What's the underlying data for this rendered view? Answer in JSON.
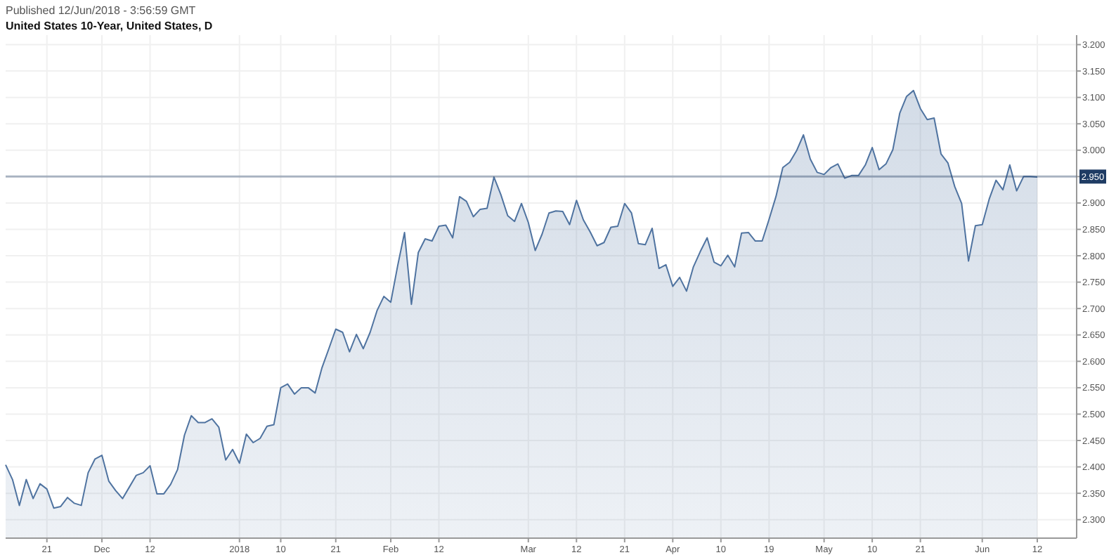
{
  "chart_data": {
    "type": "area",
    "title": "United States 10-Year, United States, D",
    "annotations": [
      "Published 12/Jun/2018 - 3:56:59 GMT"
    ],
    "categories": [
      null,
      null,
      null,
      null,
      null,
      null,
      "21",
      null,
      null,
      null,
      null,
      null,
      null,
      null,
      "Dec",
      null,
      null,
      null,
      null,
      null,
      null,
      "12",
      null,
      null,
      null,
      null,
      null,
      null,
      null,
      null,
      null,
      null,
      null,
      null,
      "2018",
      null,
      null,
      null,
      null,
      null,
      "10",
      null,
      null,
      null,
      null,
      null,
      null,
      null,
      "21",
      null,
      null,
      null,
      null,
      null,
      null,
      null,
      "Feb",
      null,
      null,
      null,
      null,
      null,
      null,
      "12",
      null,
      null,
      null,
      null,
      null,
      null,
      null,
      null,
      null,
      null,
      null,
      null,
      "Mar",
      null,
      null,
      null,
      null,
      null,
      null,
      "12",
      null,
      null,
      null,
      null,
      null,
      null,
      "21",
      null,
      null,
      null,
      null,
      null,
      null,
      "Apr",
      null,
      null,
      null,
      null,
      null,
      null,
      "10",
      null,
      null,
      null,
      null,
      null,
      null,
      "19",
      null,
      null,
      null,
      null,
      null,
      null,
      null,
      "May",
      null,
      null,
      null,
      null,
      null,
      null,
      "10",
      null,
      null,
      null,
      null,
      null,
      null,
      "21",
      null,
      null,
      null,
      null,
      null,
      null,
      null,
      null,
      "Jun",
      null,
      null,
      null,
      null,
      null,
      null,
      null,
      "12"
    ],
    "ylim": [
      2.265,
      3.218
    ],
    "yticks": [
      {
        "value": 2.3,
        "label": "2.300"
      },
      {
        "value": 2.35,
        "label": "2.350"
      },
      {
        "value": 2.4,
        "label": "2.400"
      },
      {
        "value": 2.45,
        "label": "2.450"
      },
      {
        "value": 2.5,
        "label": "2.500"
      },
      {
        "value": 2.55,
        "label": "2.550"
      },
      {
        "value": 2.6,
        "label": "2.600"
      },
      {
        "value": 2.65,
        "label": "2.650"
      },
      {
        "value": 2.7,
        "label": "2.700"
      },
      {
        "value": 2.75,
        "label": "2.750"
      },
      {
        "value": 2.8,
        "label": "2.800"
      },
      {
        "value": 2.85,
        "label": "2.850"
      },
      {
        "value": 2.9,
        "label": "2.900"
      },
      {
        "value": 2.95,
        "label": null
      },
      {
        "value": 3.0,
        "label": "3.000"
      },
      {
        "value": 3.05,
        "label": "3.050"
      },
      {
        "value": 3.1,
        "label": "3.100"
      },
      {
        "value": 3.15,
        "label": "3.150"
      },
      {
        "value": 3.2,
        "label": "3.200"
      }
    ],
    "grid": true,
    "ref_lines": [
      {
        "axis": "y",
        "value": 2.95,
        "label": "2.950",
        "color": "#1f3c64"
      }
    ],
    "series": [
      {
        "color": "#4f73a0",
        "values": [
          2.404,
          2.376,
          2.327,
          2.376,
          2.34,
          2.368,
          2.358,
          2.322,
          2.325,
          2.342,
          2.331,
          2.327,
          2.389,
          2.415,
          2.422,
          2.373,
          2.355,
          2.34,
          2.362,
          2.384,
          2.389,
          2.402,
          2.349,
          2.349,
          2.367,
          2.395,
          2.46,
          2.497,
          2.484,
          2.484,
          2.491,
          2.475,
          2.413,
          2.433,
          2.407,
          2.462,
          2.446,
          2.454,
          2.477,
          2.48,
          2.55,
          2.557,
          2.538,
          2.55,
          2.55,
          2.54,
          2.588,
          2.624,
          2.661,
          2.655,
          2.618,
          2.651,
          2.624,
          2.655,
          2.696,
          2.723,
          2.712,
          2.781,
          2.844,
          2.708,
          2.806,
          2.832,
          2.828,
          2.856,
          2.858,
          2.834,
          2.912,
          2.903,
          2.874,
          2.888,
          2.89,
          2.949,
          2.916,
          2.876,
          2.865,
          2.899,
          2.863,
          2.81,
          2.841,
          2.881,
          2.885,
          2.884,
          2.859,
          2.905,
          2.868,
          2.845,
          2.819,
          2.825,
          2.854,
          2.856,
          2.899,
          2.881,
          2.823,
          2.821,
          2.852,
          2.776,
          2.783,
          2.742,
          2.759,
          2.733,
          2.779,
          2.808,
          2.834,
          2.788,
          2.781,
          2.801,
          2.779,
          2.843,
          2.844,
          2.828,
          2.828,
          2.869,
          2.912,
          2.967,
          2.977,
          2.999,
          3.029,
          2.983,
          2.958,
          2.954,
          2.967,
          2.974,
          2.947,
          2.952,
          2.952,
          2.972,
          3.005,
          2.963,
          2.974,
          3.001,
          3.07,
          3.102,
          3.113,
          3.079,
          3.058,
          3.061,
          2.993,
          2.976,
          2.931,
          2.899,
          2.79,
          2.857,
          2.859,
          2.907,
          2.943,
          2.925,
          2.972,
          2.923,
          2.95,
          2.95,
          2.949
        ]
      }
    ]
  }
}
